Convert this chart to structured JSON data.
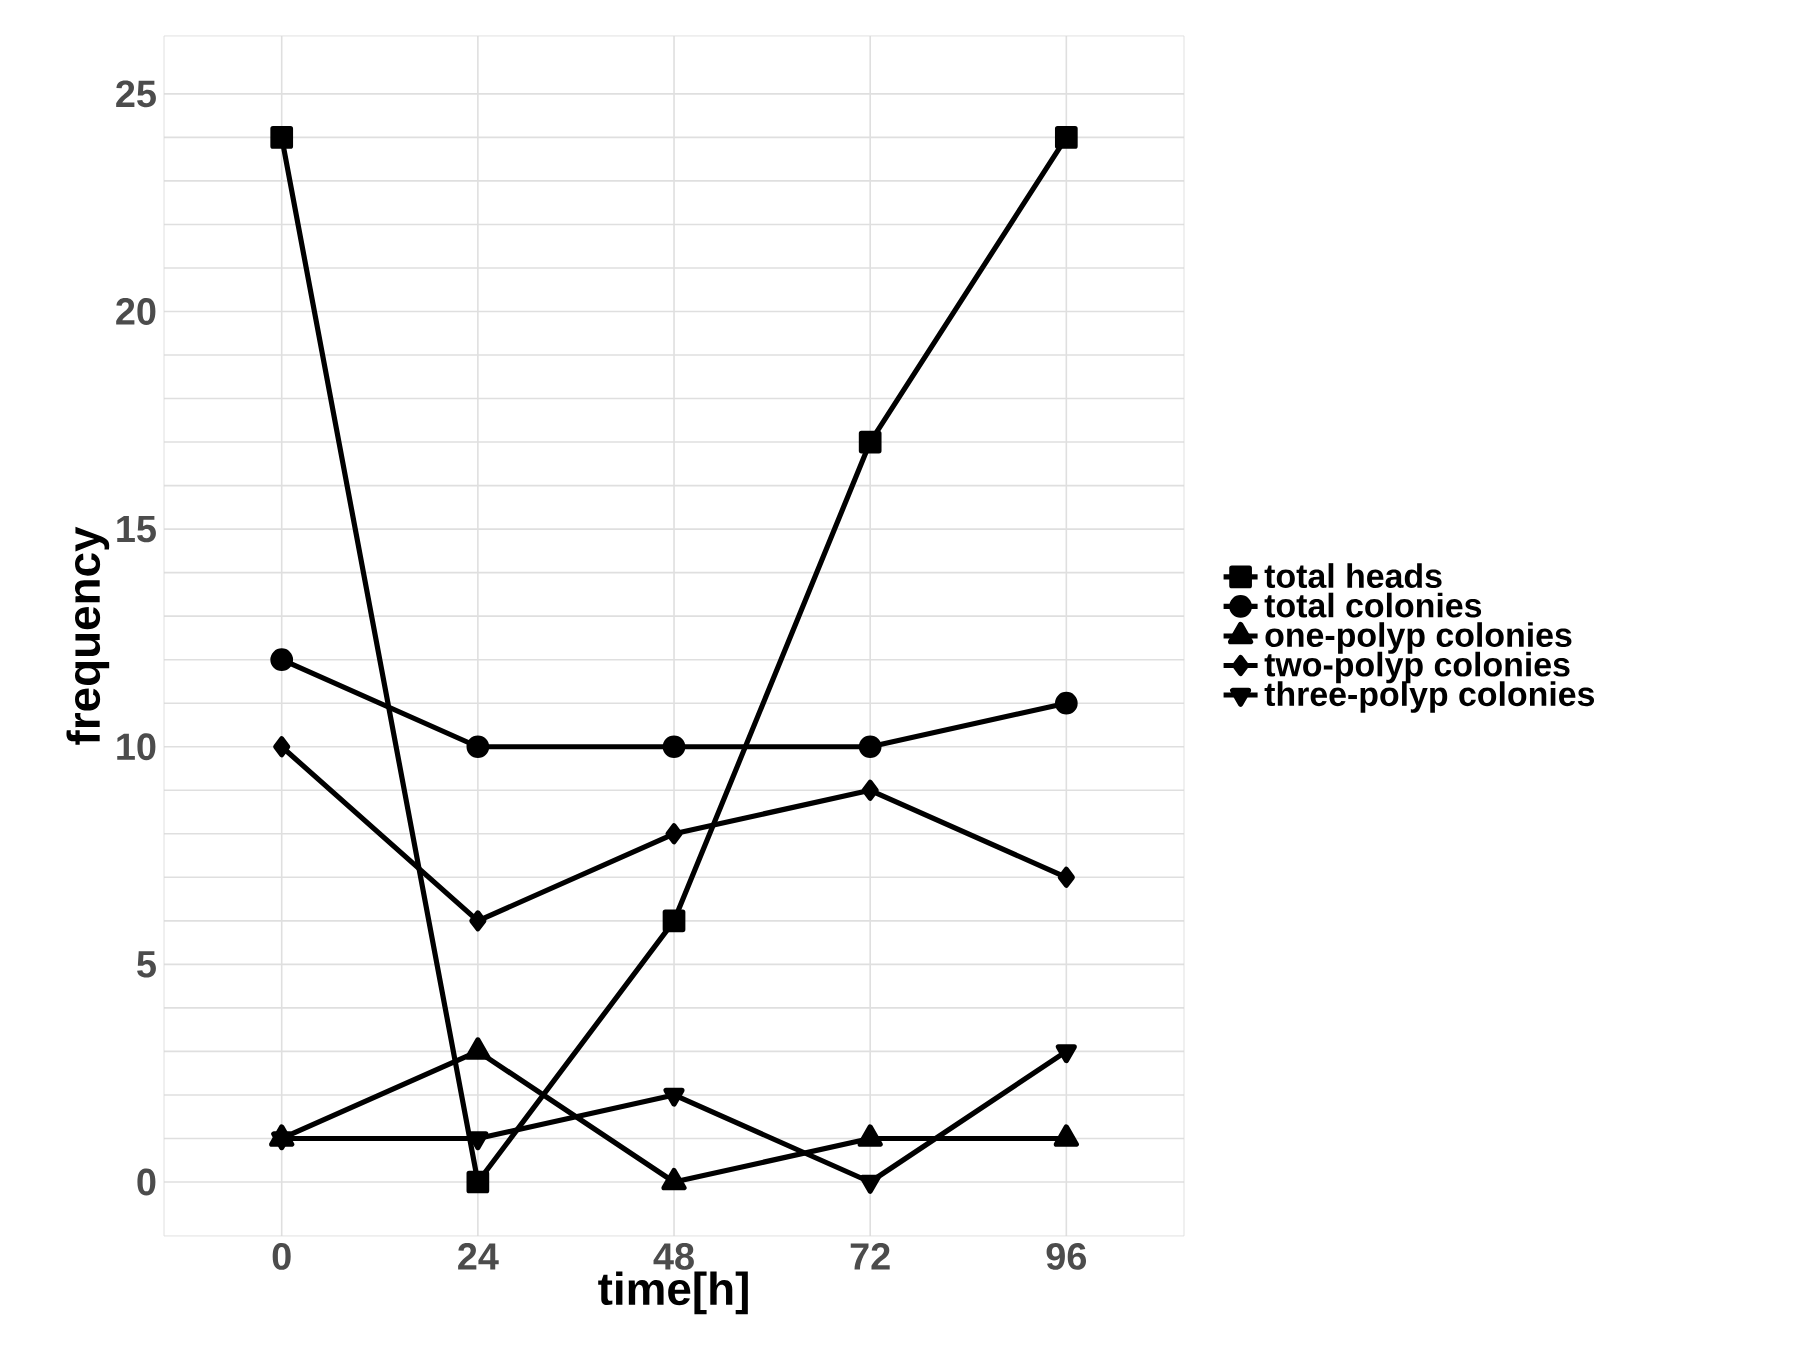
{
  "chart_data": {
    "type": "line",
    "xlabel": "time[h]",
    "ylabel": "frequency",
    "x": [
      0,
      24,
      48,
      72,
      96
    ],
    "series": [
      {
        "name": "total heads",
        "color": "#000000",
        "marker": "square",
        "values": [
          24,
          0,
          6,
          17,
          24
        ]
      },
      {
        "name": "total colonies",
        "color": "#000000",
        "marker": "circle",
        "values": [
          12,
          10,
          10,
          10,
          11
        ]
      },
      {
        "name": "one-polyp colonies",
        "color": "#000000",
        "marker": "triangle",
        "values": [
          1,
          3,
          0,
          1,
          1
        ]
      },
      {
        "name": "two-polyp colonies",
        "color": "#000000",
        "marker": "diamond",
        "values": [
          10,
          6,
          8,
          9,
          7
        ]
      },
      {
        "name": "three-polyp colonies",
        "color": "#000000",
        "marker": "triangle-down",
        "values": [
          1,
          1,
          2,
          0,
          3
        ]
      }
    ],
    "xlim": [
      -14.4,
      110.4
    ],
    "ylim": [
      -1.24,
      26.33
    ],
    "xticks": [
      0,
      24,
      48,
      72,
      96
    ],
    "yticks": [
      0,
      {
        "value": 1,
        "label": null
      },
      {
        "value": 2,
        "label": null
      },
      {
        "value": 3,
        "label": null
      },
      {
        "value": 4,
        "label": null
      },
      5,
      {
        "value": 6,
        "label": null
      },
      {
        "value": 7,
        "label": null
      },
      {
        "value": 8,
        "label": null
      },
      {
        "value": 9,
        "label": null
      },
      10,
      {
        "value": 11,
        "label": null
      },
      {
        "value": 12,
        "label": null
      },
      {
        "value": 13,
        "label": null
      },
      {
        "value": 14,
        "label": null
      },
      15,
      {
        "value": 16,
        "label": null
      },
      {
        "value": 17,
        "label": null
      },
      {
        "value": 18,
        "label": null
      },
      {
        "value": 19,
        "label": null
      },
      20,
      {
        "value": 21,
        "label": null
      },
      {
        "value": 22,
        "label": null
      },
      {
        "value": 23,
        "label": null
      },
      {
        "value": 24,
        "label": null
      },
      25
    ],
    "grid": true,
    "legend": "right",
    "line_style": "solid"
  }
}
